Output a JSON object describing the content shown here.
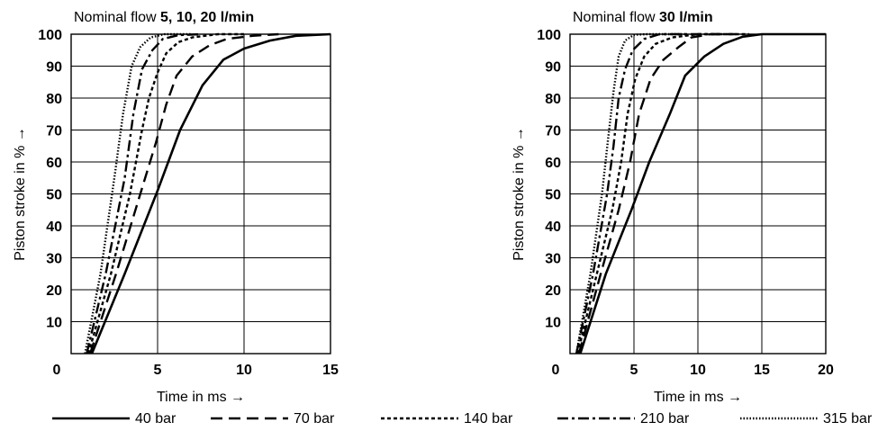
{
  "legend": [
    {
      "label": "40 bar",
      "dash": "none",
      "width": 2.6
    },
    {
      "label": "70 bar",
      "dash": "13,7",
      "width": 2.4
    },
    {
      "label": "140 bar",
      "dash": "4,3",
      "width": 2.4
    },
    {
      "label": "210 bar",
      "dash": "12,4,3,4",
      "width": 2.4
    },
    {
      "label": "315 bar",
      "dash": "1.5,2",
      "width": 2.4
    }
  ],
  "chart_data": [
    {
      "type": "line",
      "title_prefix": "Nominal flow ",
      "title_bold": "5, 10, 20 l/min",
      "xlabel": "Time in ms →",
      "ylabel": "Piston stroke in % →",
      "xlim": [
        0,
        15
      ],
      "ylim": [
        0,
        100
      ],
      "xticks": [
        0,
        5,
        10,
        15
      ],
      "xtick_labels": [
        "0",
        "5",
        "10",
        "15"
      ],
      "yticks": [
        10,
        20,
        30,
        40,
        50,
        60,
        70,
        80,
        90,
        100
      ],
      "ytick_labels": [
        "10",
        "20",
        "30",
        "40",
        "50",
        "60",
        "70",
        "80",
        "90",
        "100"
      ],
      "grid": true,
      "series": [
        {
          "name": "40 bar",
          "points": [
            [
              1.2,
              0
            ],
            [
              3.1,
              25
            ],
            [
              5.0,
              51
            ],
            [
              6.3,
              70
            ],
            [
              7.6,
              84
            ],
            [
              8.8,
              92
            ],
            [
              10.0,
              95.5
            ],
            [
              11.5,
              98
            ],
            [
              13.0,
              99.5
            ],
            [
              15.0,
              100
            ]
          ]
        },
        {
          "name": "70 bar",
          "points": [
            [
              1.1,
              0
            ],
            [
              2.6,
              25
            ],
            [
              4.0,
              50
            ],
            [
              4.9,
              66
            ],
            [
              5.5,
              78
            ],
            [
              6.1,
              87
            ],
            [
              7.0,
              93
            ],
            [
              8.0,
              96.5
            ],
            [
              9.0,
              98.5
            ],
            [
              10.5,
              99.5
            ],
            [
              12.0,
              100
            ]
          ]
        },
        {
          "name": "140 bar",
          "points": [
            [
              1.0,
              0
            ],
            [
              2.3,
              25
            ],
            [
              3.4,
              50
            ],
            [
              4.1,
              70
            ],
            [
              4.5,
              80
            ],
            [
              5.0,
              88
            ],
            [
              5.5,
              94
            ],
            [
              6.2,
              97.5
            ],
            [
              7.0,
              99
            ],
            [
              8.5,
              100
            ],
            [
              10.0,
              100
            ]
          ]
        },
        {
          "name": "210 bar",
          "points": [
            [
              0.9,
              0
            ],
            [
              2.0,
              25
            ],
            [
              3.1,
              55
            ],
            [
              3.6,
              75
            ],
            [
              4.1,
              89
            ],
            [
              4.7,
              95
            ],
            [
              5.3,
              98.5
            ],
            [
              6.2,
              99.7
            ],
            [
              7.5,
              100
            ]
          ]
        },
        {
          "name": "315 bar",
          "points": [
            [
              0.8,
              0
            ],
            [
              1.7,
              25
            ],
            [
              2.5,
              55
            ],
            [
              3.0,
              75
            ],
            [
              3.5,
              90
            ],
            [
              4.0,
              96
            ],
            [
              4.6,
              99
            ],
            [
              5.4,
              100
            ],
            [
              7.0,
              100
            ]
          ]
        }
      ]
    },
    {
      "type": "line",
      "title_prefix": "Nominal flow ",
      "title_bold": "30 l/min",
      "xlabel": "Time in ms →",
      "ylabel": "Piston stroke in % →",
      "xlim": [
        0,
        20
      ],
      "ylim": [
        0,
        100
      ],
      "xticks": [
        0,
        5,
        10,
        15,
        20
      ],
      "xtick_labels": [
        "0",
        "5",
        "10",
        "15",
        "20"
      ],
      "yticks": [
        10,
        20,
        30,
        40,
        50,
        60,
        70,
        80,
        90,
        100
      ],
      "ytick_labels": [
        "10",
        "20",
        "30",
        "40",
        "50",
        "60",
        "70",
        "80",
        "90",
        "100"
      ],
      "grid": true,
      "series": [
        {
          "name": "40 bar",
          "points": [
            [
              0.8,
              0
            ],
            [
              2.8,
              25
            ],
            [
              4.8,
              45
            ],
            [
              6.2,
              60
            ],
            [
              7.8,
              75
            ],
            [
              9.0,
              87
            ],
            [
              10.5,
              93
            ],
            [
              12.0,
              97
            ],
            [
              13.5,
              99.2
            ],
            [
              15.0,
              100
            ],
            [
              20.0,
              100
            ]
          ]
        },
        {
          "name": "70 bar",
          "points": [
            [
              0.7,
              0
            ],
            [
              2.4,
              25
            ],
            [
              3.8,
              45
            ],
            [
              4.7,
              60
            ],
            [
              5.4,
              75
            ],
            [
              6.3,
              86
            ],
            [
              7.3,
              92
            ],
            [
              8.5,
              96
            ],
            [
              9.5,
              99
            ],
            [
              11.0,
              100
            ],
            [
              13.0,
              100
            ]
          ]
        },
        {
          "name": "140 bar",
          "points": [
            [
              0.6,
              0
            ],
            [
              2.1,
              25
            ],
            [
              3.3,
              45
            ],
            [
              4.0,
              60
            ],
            [
              4.5,
              75
            ],
            [
              5.1,
              86
            ],
            [
              5.8,
              93
            ],
            [
              6.7,
              97
            ],
            [
              8.0,
              99
            ],
            [
              10.0,
              100
            ],
            [
              14.0,
              100
            ]
          ]
        },
        {
          "name": "210 bar",
          "points": [
            [
              0.5,
              0
            ],
            [
              1.8,
              25
            ],
            [
              2.9,
              50
            ],
            [
              3.4,
              65
            ],
            [
              3.8,
              80
            ],
            [
              4.3,
              89
            ],
            [
              4.9,
              95
            ],
            [
              5.8,
              98.5
            ],
            [
              7.0,
              100
            ],
            [
              12.0,
              100
            ]
          ]
        },
        {
          "name": "315 bar",
          "points": [
            [
              0.5,
              0
            ],
            [
              1.6,
              25
            ],
            [
              2.5,
              50
            ],
            [
              3.0,
              68
            ],
            [
              3.4,
              82
            ],
            [
              3.8,
              93
            ],
            [
              4.3,
              98
            ],
            [
              5.0,
              99.8
            ],
            [
              6.0,
              100
            ],
            [
              9.0,
              100
            ]
          ]
        }
      ]
    }
  ]
}
